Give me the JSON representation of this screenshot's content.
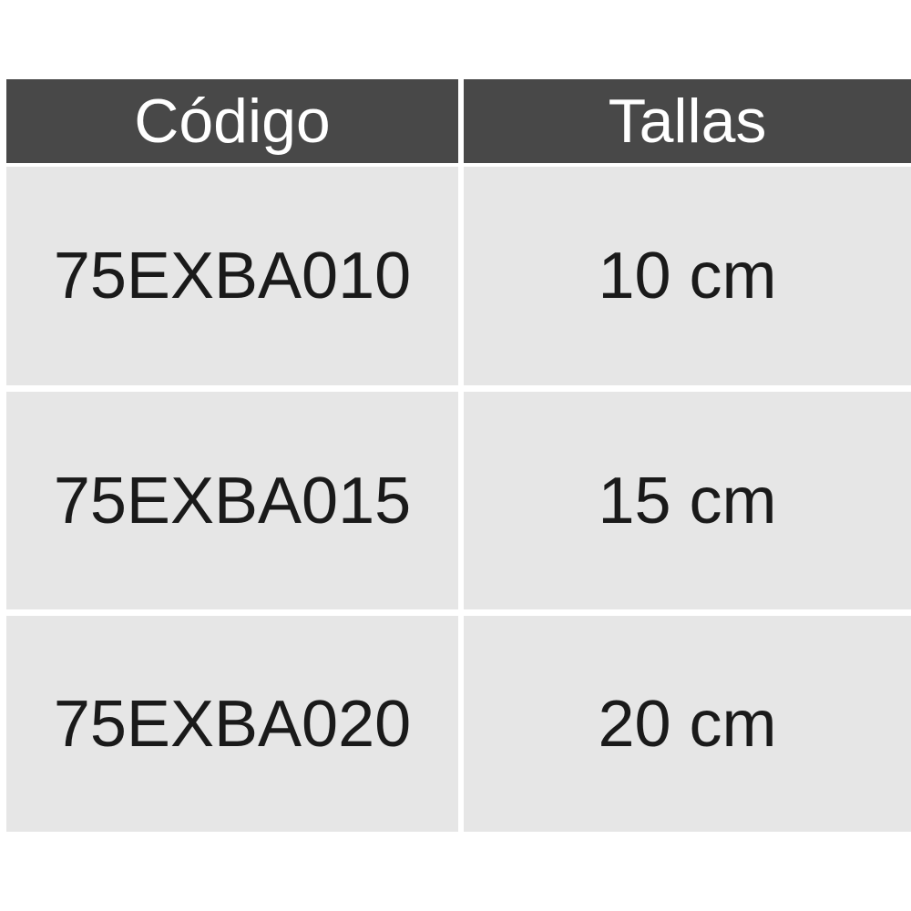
{
  "table": {
    "headers": [
      "Código",
      "Tallas"
    ],
    "rows": [
      [
        "75EXBA010",
        "10 cm"
      ],
      [
        "75EXBA015",
        "15 cm"
      ],
      [
        "75EXBA020",
        "20 cm"
      ]
    ]
  },
  "colors": {
    "header_bg": "#484848",
    "header_text": "#ffffff",
    "cell_bg": "#e6e6e6",
    "cell_text": "#1a1a1a"
  }
}
